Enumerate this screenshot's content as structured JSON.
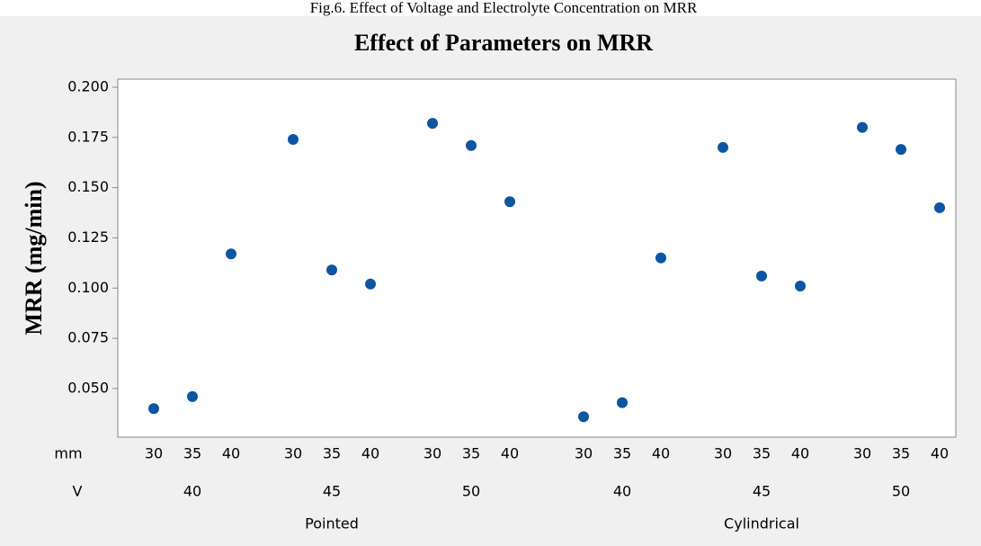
{
  "caption": "Fig.6. Effect of Voltage and Electrolyte Concentration on MRR",
  "chart_data": {
    "type": "scatter",
    "title": "Effect of Parameters on MRR",
    "y_label": "MRR (mg/min)",
    "x_level_labels": [
      "mm",
      "V"
    ],
    "categories": [
      "30",
      "35",
      "40",
      "30",
      "35",
      "40",
      "30",
      "35",
      "40",
      "30",
      "35",
      "40",
      "30",
      "35",
      "40",
      "30",
      "35",
      "40"
    ],
    "voltages": [
      "40",
      "45",
      "50",
      "40",
      "45",
      "50"
    ],
    "tools": [
      "Pointed",
      "Cylindrical"
    ],
    "color": "#0b55a3",
    "values": [
      0.04,
      0.046,
      0.117,
      0.174,
      0.109,
      0.102,
      0.182,
      0.171,
      0.143,
      0.036,
      0.043,
      0.115,
      0.17,
      0.106,
      0.101,
      0.18,
      0.169,
      0.14
    ],
    "ylim": [
      0.0258,
      0.204
    ],
    "yticks": [
      {
        "value": 0.05,
        "label": "0.050"
      },
      {
        "value": 0.075,
        "label": "0.075"
      },
      {
        "value": 0.1,
        "label": "0.100"
      },
      {
        "value": 0.125,
        "label": "0.125"
      },
      {
        "value": 0.15,
        "label": "0.150"
      },
      {
        "value": 0.175,
        "label": "0.175"
      },
      {
        "value": 0.2,
        "label": "0.200"
      }
    ]
  }
}
